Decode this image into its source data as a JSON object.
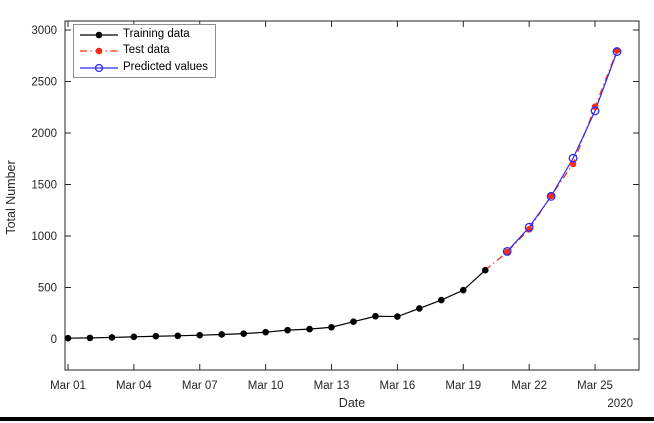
{
  "figure": {
    "xlabel": "Date",
    "ylabel": "Total Number",
    "year_label": "2020",
    "background": "#ffffff",
    "axis_color": "#262626"
  },
  "legend": {
    "items": [
      {
        "label": "Training data",
        "color": "#000000",
        "line": "solid",
        "marker": "filled-circle"
      },
      {
        "label": "Test data",
        "color": "#f92c14",
        "line": "dash-dot",
        "marker": "filled-circle"
      },
      {
        "label": "Predicted values",
        "color": "#2d2df2",
        "line": "solid",
        "marker": "open-circle"
      }
    ]
  },
  "chart_data": {
    "type": "line",
    "title": "",
    "xlabel": "Date",
    "ylabel": "Total Number",
    "year_label": "2020",
    "axis_color": "#262626",
    "grid": false,
    "legend_position": "top-left-inside",
    "ylim": [
      -300,
      3100
    ],
    "xlim_days": [
      0.9,
      27.0
    ],
    "y_ticks": [
      0,
      500,
      1000,
      1500,
      2000,
      2500,
      3000
    ],
    "x_ticks": [
      1,
      4,
      7,
      10,
      13,
      16,
      19,
      22,
      25
    ],
    "x_tick_labels": [
      "Mar 01",
      "Mar 04",
      "Mar 07",
      "Mar 10",
      "Mar 13",
      "Mar 16",
      "Mar 19",
      "Mar 22",
      "Mar 25"
    ],
    "x_unit": "day of March 2020",
    "series": [
      {
        "name": "Training data",
        "key": "training-data",
        "color": "#000000",
        "line": "solid",
        "marker": "filled-circle",
        "marker_start": 0,
        "x": [
          1,
          2,
          3,
          4,
          5,
          6,
          7,
          8,
          9,
          10,
          11,
          12,
          13,
          14,
          15,
          16,
          17,
          18,
          19,
          20
        ],
        "values": [
          8,
          11,
          15,
          21,
          27,
          31,
          37,
          44,
          52,
          66,
          86,
          96,
          114,
          168,
          221,
          218,
          297,
          378,
          474,
          668
        ]
      },
      {
        "name": "Test data",
        "key": "test-data",
        "color": "#f92c14",
        "line": "dash-dot",
        "marker": "filled-circle",
        "marker_start": 1,
        "x": [
          20,
          21,
          22,
          23,
          24,
          25,
          26
        ],
        "values": [
          668,
          845,
          1065,
          1390,
          1700,
          2255,
          2800
        ]
      },
      {
        "name": "Predicted values",
        "key": "predicted-values",
        "color": "#2d2df2",
        "line": "solid",
        "marker": "open-circle",
        "marker_start": 0,
        "x": [
          21,
          22,
          23,
          24,
          25,
          26
        ],
        "values": [
          850,
          1085,
          1385,
          1755,
          2215,
          2790
        ]
      }
    ]
  }
}
